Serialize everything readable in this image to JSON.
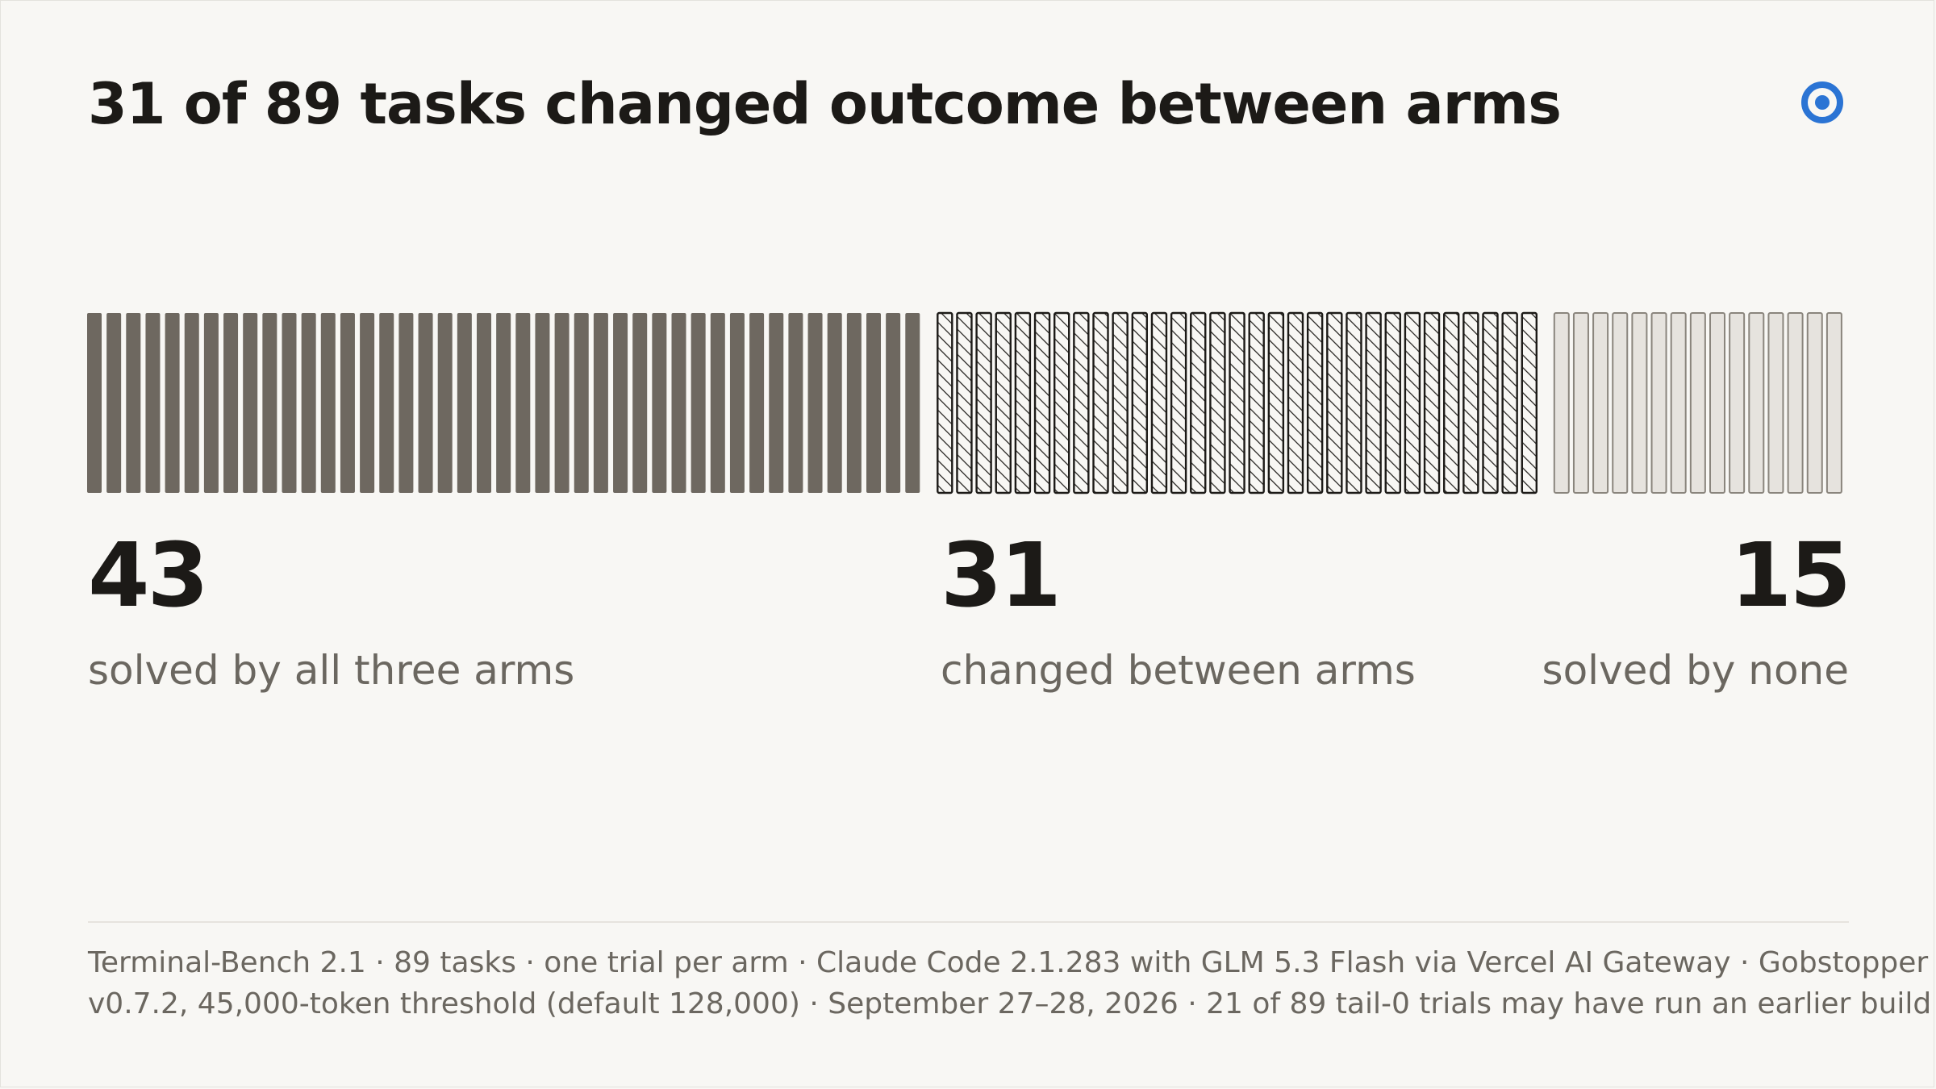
{
  "title": "31 of 89 tasks changed outcome between arms",
  "colors": {
    "solved_all": "#6e6860",
    "changed_stroke": "#1c1a17",
    "changed_fill": "#f8f7f4",
    "solved_none_fill": "#e6e3de",
    "solved_none_stroke": "#8a857d",
    "logo": "#2b74d4"
  },
  "logo": {
    "icon": "target-circle-icon"
  },
  "chart_data": {
    "type": "bar",
    "categories": [
      "solved by all three arms",
      "changed between arms",
      "solved by none"
    ],
    "values": [
      43,
      31,
      15
    ],
    "total": 89,
    "encoding": "one bar per task"
  },
  "stats": [
    {
      "value": "43",
      "label": "solved by all three arms"
    },
    {
      "value": "31",
      "label": "changed between arms"
    },
    {
      "value": "15",
      "label": "solved by none"
    }
  ],
  "footer": {
    "line1": "Terminal-Bench 2.1 · 89 tasks · one trial per arm · Claude Code 2.1.283 with GLM 5.3 Flash via Vercel AI Gateway · Gobstopper",
    "line2": "v0.7.2, 45,000-token threshold (default 128,000) · September 27–28, 2026 · 21 of 89 tail-0 trials may have run an earlier build"
  }
}
